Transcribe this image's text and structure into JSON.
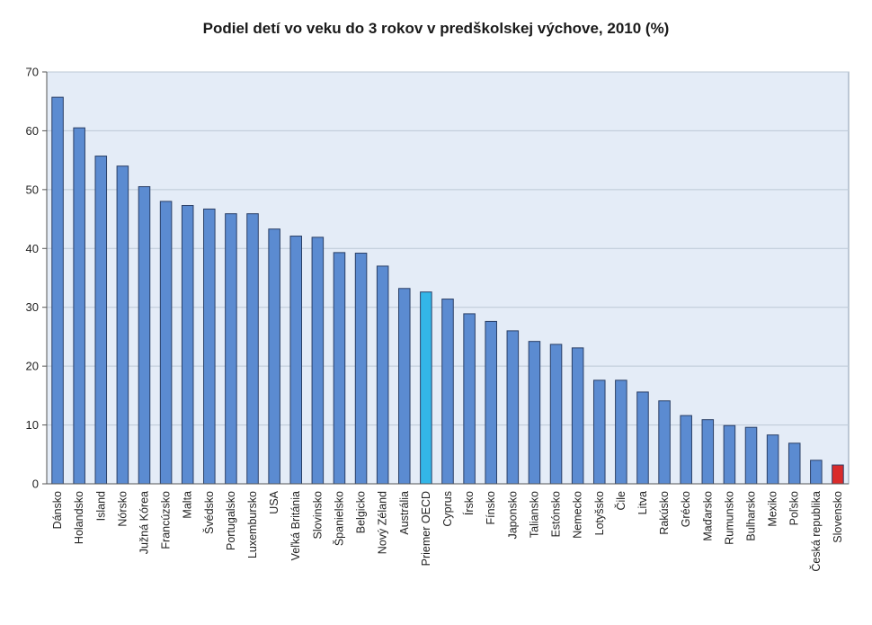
{
  "chart_data": {
    "type": "bar",
    "title": "Podiel detí vo veku do 3 rokov v predškolskej výchove, 2010 (%)",
    "xlabel": "",
    "ylabel": "",
    "ylim": [
      0,
      70
    ],
    "yticks": [
      0,
      10,
      20,
      30,
      40,
      50,
      60,
      70
    ],
    "grid": true,
    "legend": "none",
    "categories": [
      "Dánsko",
      "Holandsko",
      "Island",
      "Nórsko",
      "Južná Kórea",
      "Francúzsko",
      "Malta",
      "Švédsko",
      "Portugalsko",
      "Luxembursko",
      "USA",
      "Veľká Británia",
      "Slovinsko",
      "Španielsko",
      "Belgicko",
      "Nový Zéland",
      "Austrália",
      "Priemer OECD",
      "Cyprus",
      "Írsko",
      "Fínsko",
      "Japonsko",
      "Taliansko",
      "Estónsko",
      "Nemecko",
      "Lotyšsko",
      "Čile",
      "Litva",
      "Rakúsko",
      "Grécko",
      "Maďarsko",
      "Rumunsko",
      "Bulharsko",
      "Mexiko",
      "Poľsko",
      "Česká republika",
      "Slovensko"
    ],
    "values": [
      65.7,
      60.5,
      55.7,
      54.0,
      50.5,
      48.0,
      47.3,
      46.7,
      45.9,
      45.9,
      43.3,
      42.1,
      41.9,
      39.3,
      39.2,
      37.0,
      33.2,
      32.6,
      31.4,
      28.9,
      27.6,
      26.0,
      24.2,
      23.7,
      23.1,
      17.6,
      17.6,
      15.6,
      14.1,
      11.6,
      10.9,
      9.9,
      9.6,
      8.3,
      6.9,
      4.0,
      3.2
    ],
    "colors": {
      "default": "#5b8bd1",
      "highlight_oecd": "#33b6e8",
      "highlight_slovakia": "#d92b2b",
      "plot_background": "#e4ecf7",
      "gridline": "#bcc8d6"
    }
  }
}
